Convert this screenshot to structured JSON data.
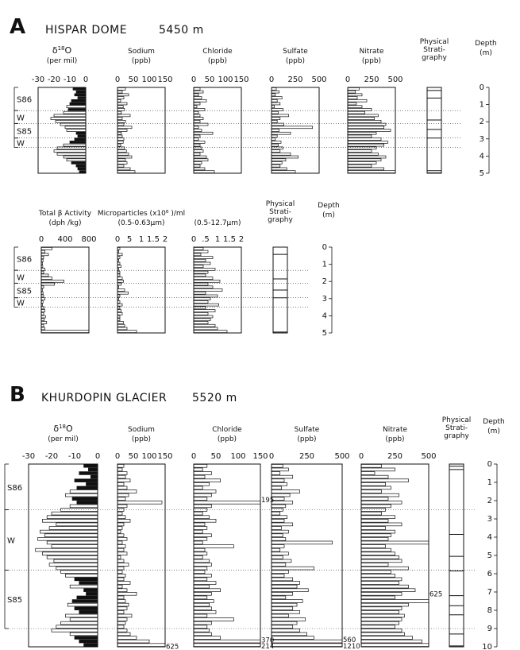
{
  "chart_data": [
    {
      "type": "bar",
      "panel": "A",
      "title": "HISPAR DOME",
      "elevation": "5450 m",
      "stratigraphy_labels": [
        {
          "label": "S86",
          "top": 0.0,
          "bottom": 1.35
        },
        {
          "label": "W",
          "top": 1.35,
          "bottom": 2.1
        },
        {
          "label": "S85",
          "top": 2.1,
          "bottom": 2.95
        },
        {
          "label": "W",
          "top": 2.95,
          "bottom": 3.5
        }
      ],
      "depth_axis": {
        "label_line1": "Depth",
        "label_line2": "(m)",
        "range": [
          0,
          5
        ],
        "ticks": [
          "0",
          "1",
          "2",
          "3",
          "4",
          "5"
        ]
      },
      "rows": [
        {
          "columns": [
            {
              "key": "d18o",
              "title_html": "δ18O",
              "title_main": "δ",
              "title_sup": "18",
              "title_tail": "O",
              "unit": "(per mil)",
              "domain": [
                -30,
                0
              ],
              "ticks": [
                "-30",
                "-20",
                "-10",
                "0"
              ],
              "anchor": "right",
              "values": [
                -8,
                -6,
                -7,
                -5,
                -9,
                -10,
                -12,
                -11,
                -14,
                -20,
                -22,
                -19,
                -16,
                -13,
                -12,
                -6,
                -5,
                -7,
                -10,
                -14,
                -18,
                -20,
                -18,
                -14,
                -12,
                -9,
                -6,
                -5,
                -4
              ],
              "fill_threshold": -12
            },
            {
              "key": "sodium",
              "title": "Sodium",
              "unit": "(ppb)",
              "domain": [
                0,
                150
              ],
              "ticks": [
                "0",
                "50",
                "100",
                "150"
              ],
              "values": [
                25,
                15,
                35,
                20,
                10,
                30,
                18,
                22,
                12,
                40,
                15,
                25,
                20,
                45,
                30,
                12,
                15,
                20,
                18,
                10,
                22,
                28,
                35,
                45,
                25,
                30,
                20,
                40,
                55
              ]
            },
            {
              "key": "chloride",
              "title": "Chloride",
              "unit": "(ppb)",
              "domain": [
                0,
                150
              ],
              "ticks": [
                "0",
                "50",
                "100",
                "150"
              ],
              "values": [
                20,
                30,
                15,
                25,
                40,
                20,
                10,
                35,
                15,
                20,
                30,
                20,
                45,
                15,
                25,
                60,
                20,
                15,
                35,
                20,
                25,
                30,
                20,
                40,
                45,
                25,
                20,
                35,
                65
              ]
            },
            {
              "key": "sulfate",
              "title": "Sulfate",
              "unit": "(ppb)",
              "domain": [
                0,
                500
              ],
              "ticks": [
                "0",
                "250",
                "500"
              ],
              "values": [
                50,
                80,
                40,
                110,
                60,
                90,
                30,
                120,
                70,
                180,
                90,
                60,
                130,
                430,
                80,
                200,
                60,
                40,
                100,
                70,
                120,
                90,
                200,
                280,
                150,
                110,
                90,
                160,
                250
              ]
            },
            {
              "key": "nitrate",
              "title": "Nitrate",
              "unit": "(ppb)",
              "domain": [
                0,
                500
              ],
              "ticks": [
                "0",
                "250",
                "500"
              ],
              "values": [
                120,
                80,
                150,
                100,
                200,
                90,
                150,
                250,
                180,
                320,
                280,
                350,
                400,
                380,
                450,
                300,
                250,
                350,
                420,
                380,
                300,
                250,
                320,
                400,
                350,
                300,
                250,
                380,
                500
              ]
            }
          ],
          "strat_header": [
            "Physical",
            "Strati-",
            "graphy"
          ],
          "strat_lines": [
            0.18,
            0.62,
            1.9,
            2.45,
            2.95,
            4.85,
            4.98
          ]
        },
        {
          "columns": [
            {
              "key": "beta",
              "title": "Total β Activity",
              "unit": "(dph /kg)",
              "domain": [
                0,
                800
              ],
              "ticks": [
                "0",
                "400",
                "800"
              ],
              "values": [
                180,
                60,
                120,
                40,
                30,
                20,
                25,
                60,
                40,
                120,
                180,
                380,
                220,
                40,
                20,
                30,
                40,
                60,
                30,
                20,
                50,
                60,
                40,
                70,
                50,
                90,
                40,
                60,
                900
              ]
            },
            {
              "key": "mp_small",
              "title": "Microparticles (x10⁶ )/ml",
              "unit": "(0.5-0.63μm)",
              "domain": [
                0,
                2
              ],
              "ticks": [
                "0",
                "5",
                "1",
                "1.5",
                "2"
              ],
              "values": [
                0.1,
                0.05,
                0.2,
                0.1,
                0.05,
                0.1,
                0.15,
                0.05,
                0.1,
                0.1,
                0.2,
                0.25,
                0.15,
                0.05,
                0.3,
                0.45,
                0.1,
                0.05,
                0.1,
                0.2,
                0.1,
                0.15,
                0.2,
                0.1,
                0.1,
                0.25,
                0.3,
                0.4,
                0.8
              ]
            },
            {
              "key": "mp_large",
              "title": "",
              "unit": "(0.5-12.7μm)",
              "domain": [
                0,
                2
              ],
              "ticks": [
                "0",
                ".5",
                "1",
                "1.5",
                "2"
              ],
              "values": [
                0.4,
                0.6,
                0.3,
                0.8,
                0.5,
                0.7,
                0.4,
                0.9,
                0.6,
                0.5,
                0.8,
                1.1,
                0.6,
                0.8,
                1.2,
                0.5,
                1.0,
                0.7,
                0.6,
                1.05,
                0.5,
                0.9,
                0.6,
                0.8,
                0.7,
                0.6,
                0.9,
                1.0,
                1.4
              ]
            }
          ],
          "strat_header": [
            "Physical",
            "Strati-",
            "graphy"
          ],
          "strat_lines": [
            0.42,
            1.85,
            2.5,
            2.95,
            4.95
          ]
        }
      ]
    },
    {
      "type": "bar",
      "panel": "B",
      "title": "KHURDOPIN GLACIER",
      "elevation": "5520 m",
      "stratigraphy_labels": [
        {
          "label": "S86",
          "top": 0.0,
          "bottom": 2.5
        },
        {
          "label": "W",
          "top": 2.5,
          "bottom": 5.8
        },
        {
          "label": "S85",
          "top": 5.8,
          "bottom": 9.0
        }
      ],
      "depth_axis": {
        "label_line1": "Depth",
        "label_line2": "(m)",
        "range": [
          0,
          10
        ],
        "ticks": [
          "0",
          "1",
          "2",
          "3",
          "4",
          "5",
          "6",
          "7",
          "8",
          "9",
          "10"
        ]
      },
      "columns": [
        {
          "key": "d18o",
          "title_main": "δ",
          "title_sup": "18",
          "title_tail": "O",
          "unit": "(per mil)",
          "domain": [
            -30,
            0
          ],
          "ticks": [
            "-30",
            "-20",
            "-10",
            "0"
          ],
          "anchor": "right",
          "values": [
            -6,
            -4,
            -8,
            -3,
            -10,
            -5,
            -9,
            -12,
            -14,
            -11,
            -9,
            -12,
            -16,
            -20,
            -22,
            -24,
            -18,
            -21,
            -25,
            -23,
            -26,
            -22,
            -20,
            -27,
            -24,
            -22,
            -19,
            -21,
            -18,
            -16,
            -14,
            -10,
            -8,
            -12,
            -6,
            -5,
            -9,
            -11,
            -13,
            -10,
            -8,
            -14,
            -12,
            -16,
            -18,
            -20,
            -12,
            -10,
            -8,
            -6
          ],
          "fill_threshold": -12
        },
        {
          "key": "sodium",
          "title": "Sodium",
          "unit": "(ppb)",
          "domain": [
            0,
            150
          ],
          "ticks": [
            "0",
            "50",
            "100",
            "150"
          ],
          "values": [
            20,
            15,
            30,
            25,
            40,
            20,
            30,
            60,
            35,
            25,
            140,
            30,
            20,
            15,
            25,
            40,
            20,
            15,
            10,
            20,
            30,
            15,
            25,
            20,
            30,
            10,
            20,
            35,
            20,
            15,
            25,
            20,
            40,
            15,
            30,
            60,
            20,
            25,
            35,
            30,
            20,
            45,
            30,
            25,
            20,
            30,
            40,
            60,
            100,
            150
          ]
        },
        {
          "key": "chloride",
          "title": "Chloride",
          "unit": "(ppb)",
          "domain": [
            0,
            150
          ],
          "ticks": [
            "0",
            "50",
            "100",
            "150"
          ],
          "values": [
            30,
            20,
            40,
            25,
            60,
            35,
            20,
            50,
            40,
            30,
            150,
            40,
            30,
            20,
            35,
            50,
            25,
            30,
            20,
            40,
            30,
            20,
            90,
            25,
            30,
            20,
            35,
            40,
            30,
            25,
            40,
            30,
            50,
            35,
            60,
            40,
            30,
            45,
            35,
            40,
            50,
            30,
            90,
            40,
            30,
            35,
            40,
            60,
            150,
            150
          ]
        },
        {
          "key": "sulfate",
          "title": "Sulfate",
          "unit": "(ppb)",
          "domain": [
            0,
            500
          ],
          "ticks": [
            "0",
            "250",
            "500"
          ],
          "values": [
            80,
            120,
            60,
            150,
            90,
            110,
            70,
            200,
            130,
            90,
            150,
            100,
            80,
            60,
            110,
            90,
            150,
            70,
            120,
            80,
            100,
            430,
            90,
            60,
            120,
            80,
            140,
            100,
            300,
            120,
            90,
            150,
            200,
            180,
            260,
            150,
            100,
            220,
            180,
            150,
            200,
            120,
            240,
            180,
            150,
            200,
            250,
            300,
            500,
            500
          ]
        },
        {
          "key": "nitrate",
          "title": "Nitrate",
          "unit": "(ppb)",
          "domain": [
            0,
            500
          ],
          "ticks": [
            "0",
            "250",
            "500"
          ],
          "values": [
            150,
            250,
            100,
            200,
            350,
            180,
            220,
            150,
            280,
            200,
            300,
            220,
            180,
            150,
            250,
            200,
            300,
            180,
            250,
            220,
            200,
            500,
            180,
            220,
            250,
            280,
            300,
            200,
            350,
            220,
            250,
            300,
            280,
            350,
            400,
            300,
            250,
            500,
            350,
            300,
            280,
            320,
            300,
            280,
            250,
            300,
            320,
            380,
            450,
            500
          ]
        }
      ],
      "annotations": [
        {
          "column": "sodium",
          "depth": 9.98,
          "text": "625"
        },
        {
          "column": "chloride",
          "depth": 1.95,
          "text": "195"
        },
        {
          "column": "chloride",
          "depth": 9.62,
          "text": "370"
        },
        {
          "column": "chloride",
          "depth": 9.96,
          "text": "214"
        },
        {
          "column": "sulfate",
          "depth": 9.6,
          "text": "560"
        },
        {
          "column": "sulfate",
          "depth": 9.96,
          "text": "1210"
        },
        {
          "column": "nitrate",
          "depth": 7.1,
          "text": "625"
        }
      ],
      "strat_header": [
        "Physical",
        "Strati-",
        "graphy"
      ],
      "strat_lines": [
        0.12,
        0.3,
        3.85,
        5.05,
        5.85,
        7.2,
        7.75,
        8.25,
        9.3,
        9.95
      ]
    }
  ]
}
